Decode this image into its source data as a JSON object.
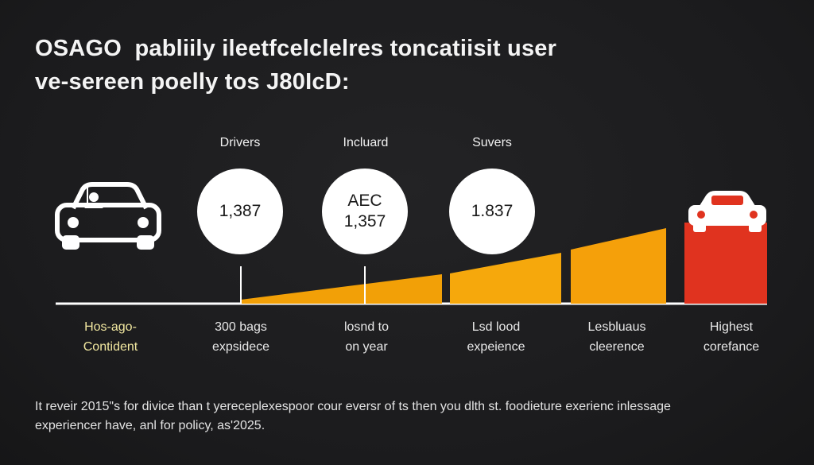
{
  "title": {
    "line1": "OSAGO",
    "line1_rest": "pabliily ileetfcelclelres toncatiisit user",
    "line2": "ve-sereen poelly tos J80IcD:"
  },
  "circles": [
    {
      "header": "Drivers",
      "value_top": "",
      "value": "1,387"
    },
    {
      "header": "Incluard",
      "value_top": "AEC",
      "value": "1,357"
    },
    {
      "header": "Suvers",
      "value_top": "",
      "value": "1.837"
    }
  ],
  "stages": [
    {
      "line1": "Hos-ago-",
      "line2": "Contident"
    },
    {
      "line1": "300 bags",
      "line2": "expsidece"
    },
    {
      "line1": "losnd to",
      "line2": "on year"
    },
    {
      "line1": "Lsd lood",
      "line2": "expeience"
    },
    {
      "line1": "Lesbluaus",
      "line2": "cleerence"
    },
    {
      "line1": "Highest",
      "line2": "corefance"
    }
  ],
  "footer": {
    "line1": "It reveir 2015\"s for divice than t yereceplexespoor cour eversr of ts then you dlth st. foodieture exerienc inlessage",
    "line2": "experiencer have, anl for policy, as'2025."
  },
  "colors": {
    "background": "#1d1d1f",
    "accent_orange": "#f5a00a",
    "accent_red": "#e0331f",
    "text": "#ffffff",
    "first_label": "#f2e8a0"
  },
  "icons": {
    "car_left": "car-with-driver-icon",
    "car_right": "car-icon"
  }
}
